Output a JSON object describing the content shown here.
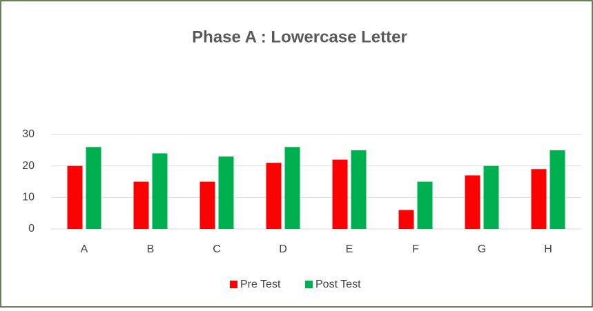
{
  "chart_data": {
    "type": "bar",
    "title": "Phase A : Lowercase Letter",
    "categories": [
      "A",
      "B",
      "C",
      "D",
      "E",
      "F",
      "G",
      "H"
    ],
    "series": [
      {
        "name": "Pre Test",
        "color": "#ff0000",
        "values": [
          20,
          15,
          15,
          21,
          22,
          6,
          17,
          19
        ]
      },
      {
        "name": "Post Test",
        "color": "#00b050",
        "values": [
          26,
          24,
          23,
          26,
          25,
          15,
          20,
          25
        ]
      }
    ],
    "ylim": [
      0,
      30
    ],
    "yticks": [
      0,
      10,
      20,
      30
    ],
    "grid": true,
    "legend": "bottom"
  }
}
